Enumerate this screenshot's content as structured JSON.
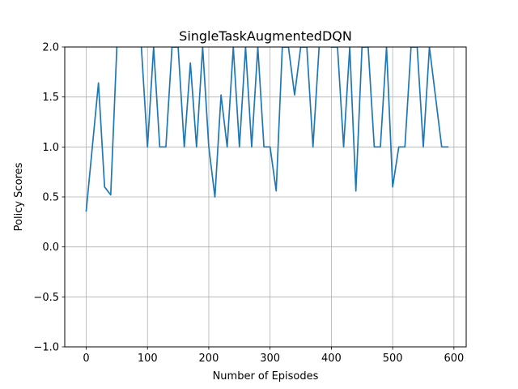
{
  "chart_data": {
    "type": "line",
    "title": "SingleTaskAugmentedDQN",
    "xlabel": "Number of Episodes",
    "ylabel": "Policy Scores",
    "xlim": [
      -35,
      620
    ],
    "ylim": [
      -1.0,
      2.0
    ],
    "grid": true,
    "xticks": [
      0,
      100,
      200,
      300,
      400,
      500,
      600
    ],
    "yticks": [
      -1.0,
      -0.5,
      0.0,
      0.5,
      1.0,
      1.5,
      2.0
    ],
    "xtick_labels": [
      "0",
      "100",
      "200",
      "300",
      "400",
      "500",
      "600"
    ],
    "ytick_labels": [
      "−1.0",
      "−0.5",
      "0.0",
      "0.5",
      "1.0",
      "1.5",
      "2.0"
    ],
    "series": [
      {
        "color": "#1f77b4",
        "x": [
          0,
          10,
          20,
          30,
          40,
          50,
          60,
          70,
          80,
          90,
          100,
          110,
          120,
          130,
          140,
          150,
          160,
          170,
          180,
          190,
          200,
          210,
          220,
          230,
          240,
          250,
          260,
          270,
          280,
          290,
          300,
          310,
          320,
          330,
          340,
          350,
          360,
          370,
          380,
          390,
          400,
          410,
          420,
          430,
          440,
          450,
          460,
          470,
          480,
          490,
          500,
          510,
          520,
          530,
          540,
          550,
          560,
          570,
          580,
          590
        ],
        "y": [
          0.36,
          1.0,
          1.64,
          0.6,
          0.52,
          2.0,
          2.2,
          2.3,
          2.2,
          2.0,
          1.0,
          2.0,
          1.0,
          1.0,
          2.0,
          2.0,
          1.0,
          1.84,
          1.0,
          2.0,
          1.0,
          0.5,
          1.52,
          1.0,
          2.0,
          1.0,
          2.0,
          1.0,
          2.0,
          1.0,
          1.0,
          0.56,
          2.0,
          2.0,
          1.52,
          2.0,
          2.0,
          1.0,
          2.0,
          2.2,
          2.0,
          2.0,
          1.0,
          2.0,
          0.56,
          2.0,
          2.0,
          1.0,
          1.0,
          2.0,
          0.6,
          1.0,
          1.0,
          2.0,
          2.0,
          1.0,
          2.0,
          1.5,
          1.0,
          1.0
        ]
      }
    ]
  }
}
